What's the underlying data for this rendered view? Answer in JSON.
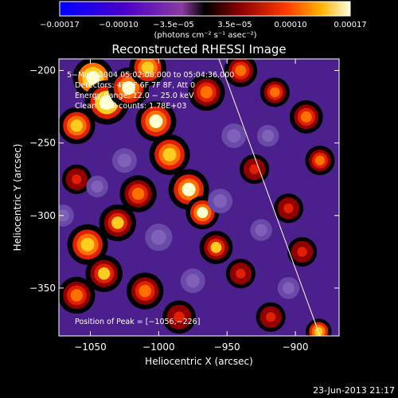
{
  "chart_data": {
    "type": "heatmap",
    "title": "Reconstructed RHESSI Image",
    "xlabel": "Heliocentric X (arcsec)",
    "ylabel": "Heliocentric Y (arcsec)",
    "xlim": [
      -1073,
      -868
    ],
    "ylim": [
      -383,
      -192
    ],
    "x_ticks": [
      -1050,
      -1000,
      -950,
      -900
    ],
    "x_tick_labels": [
      "−1050",
      "−1000",
      "−950",
      "−900"
    ],
    "y_ticks": [
      -200,
      -250,
      -300,
      -350
    ],
    "y_tick_labels": [
      "−200",
      "−250",
      "−300",
      "−350"
    ],
    "colorbar": {
      "range": [
        -0.00017,
        0.00017
      ],
      "ticks": [
        -0.00017,
        -0.0001,
        -3.5e-05,
        3.5e-05,
        0.0001,
        0.00017
      ],
      "tick_labels": [
        "−0.00017",
        "−0.00010",
        "−3.5e−05",
        "3.5e−05",
        "0.00010",
        "0.00017"
      ],
      "unit_label": "(photons cm⁻² s⁻¹ asec⁻²)"
    },
    "annotations": {
      "time": "5−Mar−2004 05:02:08.000 to 05:04:36.000",
      "detectors": "Detectors: 4F 5F 6F 7F 8F, Att 0",
      "energy": "Energy Range: 12.0 − 25.0 keV",
      "clean": "Clean    Total counts: 1.78E+03",
      "peak": "Position of Peak = [−1056,−226]"
    },
    "peak_position": [
      -1056,
      -226
    ],
    "limb_line": [
      [
        -956,
        -192
      ],
      [
        -882,
        -383
      ]
    ],
    "blobs": [
      {
        "x": -1048,
        "y": -205,
        "v": 1.0,
        "r": 11
      },
      {
        "x": -1038,
        "y": -222,
        "v": 0.95,
        "r": 12
      },
      {
        "x": -1022,
        "y": -212,
        "v": 0.9,
        "r": 11
      },
      {
        "x": -1008,
        "y": -198,
        "v": 0.75,
        "r": 10
      },
      {
        "x": -1060,
        "y": -238,
        "v": 0.8,
        "r": 10
      },
      {
        "x": -1002,
        "y": -235,
        "v": 0.85,
        "r": 11
      },
      {
        "x": -992,
        "y": -258,
        "v": 0.8,
        "r": 11
      },
      {
        "x": -978,
        "y": -282,
        "v": 0.85,
        "r": 11
      },
      {
        "x": -968,
        "y": -298,
        "v": 0.9,
        "r": 9
      },
      {
        "x": -958,
        "y": -322,
        "v": 0.7,
        "r": 9
      },
      {
        "x": -1015,
        "y": -285,
        "v": 0.55,
        "r": 10
      },
      {
        "x": -1030,
        "y": -305,
        "v": 0.7,
        "r": 10
      },
      {
        "x": -1052,
        "y": -320,
        "v": 0.75,
        "r": 11
      },
      {
        "x": -1040,
        "y": -340,
        "v": 0.7,
        "r": 10
      },
      {
        "x": -1010,
        "y": -352,
        "v": 0.55,
        "r": 10
      },
      {
        "x": -1060,
        "y": -355,
        "v": 0.6,
        "r": 10
      },
      {
        "x": -965,
        "y": -215,
        "v": 0.65,
        "r": 10
      },
      {
        "x": -940,
        "y": -200,
        "v": 0.6,
        "r": 9
      },
      {
        "x": -915,
        "y": -215,
        "v": 0.55,
        "r": 8
      },
      {
        "x": -892,
        "y": -232,
        "v": 0.65,
        "r": 9
      },
      {
        "x": -882,
        "y": -262,
        "v": 0.55,
        "r": 8
      },
      {
        "x": -930,
        "y": -268,
        "v": 0.5,
        "r": 8
      },
      {
        "x": -905,
        "y": -295,
        "v": 0.45,
        "r": 8
      },
      {
        "x": -940,
        "y": -340,
        "v": 0.45,
        "r": 8
      },
      {
        "x": -895,
        "y": -325,
        "v": 0.5,
        "r": 8
      },
      {
        "x": -918,
        "y": -370,
        "v": 0.5,
        "r": 8
      },
      {
        "x": -883,
        "y": -380,
        "v": 0.75,
        "r": 7
      },
      {
        "x": -985,
        "y": -370,
        "v": 0.5,
        "r": 9
      },
      {
        "x": -1060,
        "y": -275,
        "v": 0.45,
        "r": 8
      },
      {
        "x": -1025,
        "y": -262,
        "v": -0.55,
        "r": 9
      },
      {
        "x": -1045,
        "y": -280,
        "v": -0.5,
        "r": 8
      },
      {
        "x": -1000,
        "y": -315,
        "v": -0.6,
        "r": 10
      },
      {
        "x": -945,
        "y": -245,
        "v": -0.5,
        "r": 9
      },
      {
        "x": -920,
        "y": -245,
        "v": -0.4,
        "r": 8
      },
      {
        "x": -955,
        "y": -290,
        "v": -0.45,
        "r": 9
      },
      {
        "x": -925,
        "y": -310,
        "v": -0.45,
        "r": 8
      },
      {
        "x": -975,
        "y": -345,
        "v": -0.5,
        "r": 9
      },
      {
        "x": -905,
        "y": -350,
        "v": -0.45,
        "r": 8
      },
      {
        "x": -1070,
        "y": -300,
        "v": -0.4,
        "r": 8
      }
    ]
  }
}
